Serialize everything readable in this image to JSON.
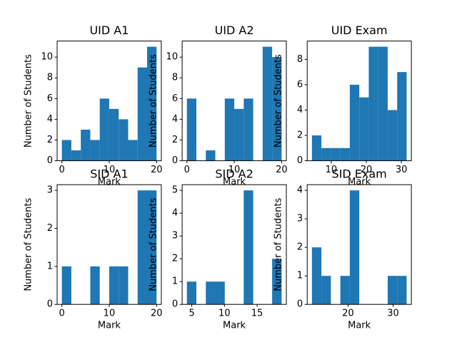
{
  "chart_data": [
    {
      "type": "histogram",
      "title": "UID A1",
      "xlabel": "Mark",
      "ylabel": "Number of Students",
      "color": "#1f77b4",
      "bins": [
        0,
        2,
        4,
        6,
        8,
        10,
        12,
        14,
        16,
        18,
        20
      ],
      "counts": [
        2,
        1,
        3,
        2,
        6,
        5,
        4,
        2,
        9,
        11
      ],
      "xlim": [
        -1,
        21
      ],
      "xticks": [
        0,
        10,
        20
      ],
      "ylim": [
        0,
        11.55
      ],
      "yticks": [
        0,
        2,
        4,
        6,
        8,
        10
      ]
    },
    {
      "type": "histogram",
      "title": "UID A2",
      "xlabel": "Mark",
      "ylabel": "Number of Students",
      "color": "#1f77b4",
      "bins": [
        0,
        2,
        4,
        6,
        8,
        10,
        12,
        14,
        16,
        18,
        20
      ],
      "counts": [
        6,
        0,
        1,
        0,
        6,
        5,
        6,
        0,
        11,
        10
      ],
      "xlim": [
        -1,
        21
      ],
      "xticks": [
        0,
        10,
        20
      ],
      "ylim": [
        0,
        11.55
      ],
      "yticks": [
        0,
        2,
        4,
        6,
        8,
        10
      ]
    },
    {
      "type": "histogram",
      "title": "UID Exam",
      "xlabel": "Mark",
      "ylabel": "Number of Students",
      "color": "#1f77b4",
      "bins": [
        4.5,
        7.2,
        9.9,
        12.6,
        15.3,
        18,
        20.7,
        23.4,
        26.1,
        28.8,
        31.5
      ],
      "counts": [
        2,
        1,
        1,
        1,
        6,
        5,
        9,
        9,
        4,
        7
      ],
      "xlim": [
        3.15,
        32.85
      ],
      "xticks": [
        10,
        20,
        30
      ],
      "ylim": [
        0,
        9.45
      ],
      "yticks": [
        0,
        2,
        4,
        6,
        8
      ]
    },
    {
      "type": "histogram",
      "title": "SID A1",
      "xlabel": "Mark",
      "ylabel": "Number of Students",
      "color": "#1f77b4",
      "bins": [
        0,
        2,
        4,
        6,
        8,
        10,
        12,
        14,
        16,
        18,
        20
      ],
      "counts": [
        1,
        0,
        0,
        1,
        0,
        1,
        1,
        0,
        3,
        3
      ],
      "xlim": [
        -1,
        21
      ],
      "xticks": [
        0,
        10,
        20
      ],
      "ylim": [
        0,
        3.15
      ],
      "yticks": [
        0,
        1,
        2,
        3
      ]
    },
    {
      "type": "histogram",
      "title": "SID A2",
      "xlabel": "Mark",
      "ylabel": "Number of Students",
      "color": "#1f77b4",
      "bins": [
        4.25,
        5.7,
        7.15,
        8.6,
        10.05,
        11.5,
        12.95,
        14.4,
        15.85,
        17.3,
        18.75
      ],
      "counts": [
        1,
        0,
        1,
        1,
        0,
        0,
        5,
        0,
        0,
        2
      ],
      "xlim": [
        3.525,
        19.475
      ],
      "xticks": [
        5,
        10,
        15
      ],
      "ylim": [
        0,
        5.25
      ],
      "yticks": [
        0,
        1,
        2,
        3,
        4,
        5
      ]
    },
    {
      "type": "histogram",
      "title": "SID Exam",
      "xlabel": "Mark",
      "ylabel": "Number of Students",
      "color": "#1f77b4",
      "bins": [
        12,
        14.1,
        16.2,
        18.3,
        20.4,
        22.5,
        24.6,
        26.7,
        28.8,
        30.9,
        33
      ],
      "counts": [
        2,
        1,
        0,
        1,
        4,
        0,
        0,
        0,
        1,
        1
      ],
      "xlim": [
        10.95,
        34.05
      ],
      "xticks": [
        20,
        30
      ],
      "ylim": [
        0,
        4.2
      ],
      "yticks": [
        0,
        1,
        2,
        3,
        4
      ]
    }
  ]
}
